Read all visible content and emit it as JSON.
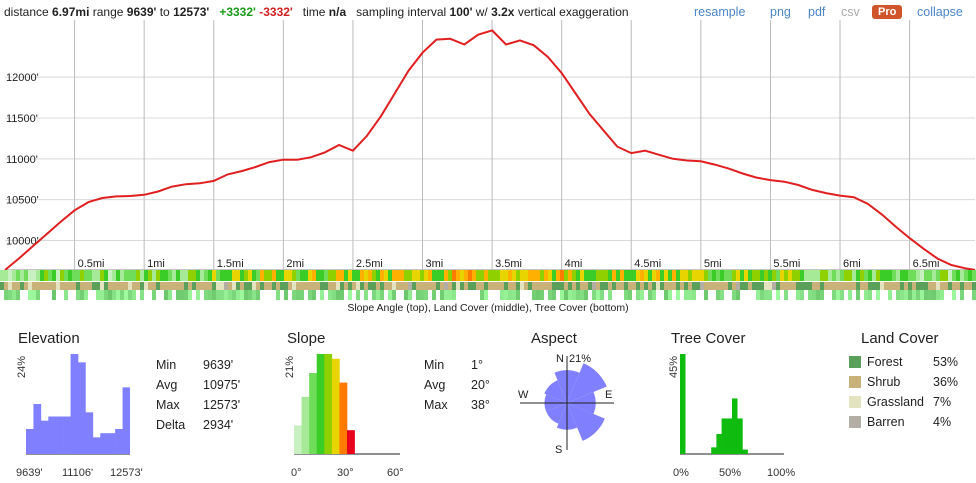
{
  "topbar": {
    "distance_label": "distance",
    "distance_value": "6.97mi",
    "range_label": "range",
    "range_min": "9639'",
    "range_to": "to",
    "range_max": "12573'",
    "gain": "+3332'",
    "loss": "-3332'",
    "time_label": "time",
    "time_value": "n/a",
    "sampling_label": "sampling interval",
    "sampling_value": "100'",
    "w_label": "w/",
    "exaggeration_value": "3.2x",
    "exaggeration_label": "vertical exaggeration",
    "resample": "resample",
    "png": "png",
    "pdf": "pdf",
    "csv": "csv",
    "pro": "Pro",
    "collapse": "collapse"
  },
  "strip_caption": "Slope Angle (top), Land Cover (middle), Tree Cover (bottom)",
  "chart_data": [
    {
      "type": "line",
      "title": "",
      "xlabel": "",
      "ylabel": "",
      "xlim": [
        0,
        6.97
      ],
      "ylim": [
        9639,
        12700
      ],
      "y_ticks": [
        10000,
        10500,
        11000,
        11500,
        12000
      ],
      "y_tick_labels": [
        "10000'",
        "10500'",
        "11000'",
        "11500'",
        "12000'"
      ],
      "x_ticks": [
        0.5,
        1,
        1.5,
        2,
        2.5,
        3,
        3.5,
        4,
        4.5,
        5,
        5.5,
        6,
        6.5
      ],
      "x_tick_labels": [
        "0.5mi",
        "1mi",
        "1.5mi",
        "2mi",
        "2.5mi",
        "3mi",
        "3.5mi",
        "4mi",
        "4.5mi",
        "5mi",
        "5.5mi",
        "6mi",
        "6.5mi"
      ],
      "grid": true,
      "color": "#e02020",
      "x": [
        0,
        0.1,
        0.2,
        0.3,
        0.4,
        0.5,
        0.6,
        0.7,
        0.8,
        0.9,
        1.0,
        1.1,
        1.2,
        1.3,
        1.4,
        1.5,
        1.6,
        1.7,
        1.8,
        1.9,
        2.0,
        2.1,
        2.2,
        2.3,
        2.4,
        2.5,
        2.6,
        2.7,
        2.8,
        2.9,
        3.0,
        3.1,
        3.2,
        3.3,
        3.4,
        3.5,
        3.6,
        3.7,
        3.8,
        3.9,
        4.0,
        4.1,
        4.2,
        4.3,
        4.4,
        4.5,
        4.6,
        4.7,
        4.8,
        4.9,
        5.0,
        5.1,
        5.2,
        5.3,
        5.4,
        5.5,
        5.6,
        5.7,
        5.8,
        5.9,
        6.0,
        6.1,
        6.2,
        6.3,
        6.4,
        6.5,
        6.6,
        6.7,
        6.8,
        6.9,
        6.97
      ],
      "y": [
        9639,
        9780,
        9930,
        10080,
        10230,
        10370,
        10470,
        10520,
        10540,
        10545,
        10560,
        10600,
        10660,
        10690,
        10700,
        10730,
        10810,
        10850,
        10900,
        10960,
        10990,
        10990,
        11020,
        11080,
        11170,
        11100,
        11280,
        11520,
        11800,
        12080,
        12300,
        12460,
        12470,
        12400,
        12520,
        12573,
        12400,
        12450,
        12390,
        12250,
        12050,
        11800,
        11550,
        11350,
        11150,
        11070,
        11100,
        11050,
        11000,
        10980,
        10970,
        10930,
        10880,
        10820,
        10770,
        10740,
        10720,
        10680,
        10620,
        10580,
        10550,
        10530,
        10450,
        10320,
        10170,
        10030,
        9900,
        9780,
        9700,
        9660,
        9640
      ]
    },
    {
      "type": "bar",
      "title": "Elevation",
      "ylabel": "24%",
      "x_tick_labels": [
        "9639'",
        "11106'",
        "12573'"
      ],
      "values": [
        6,
        12,
        8,
        9,
        9,
        9,
        24,
        22,
        10,
        4,
        5,
        5,
        6,
        16
      ],
      "color": "#8080ff"
    },
    {
      "type": "bar",
      "title": "Slope",
      "ylabel": "21%",
      "x_tick_labels": [
        "0°",
        "30°",
        "60°"
      ],
      "values": [
        6,
        12,
        17,
        21,
        21,
        20,
        15,
        5
      ],
      "colors": [
        "#c8f0c0",
        "#a6ea98",
        "#6fdd5a",
        "#3acd28",
        "#8fd000",
        "#e8d400",
        "#ff7a00",
        "#e8001c"
      ]
    },
    {
      "type": "pie",
      "title": "Aspect",
      "max_label": "21%",
      "direction_labels": [
        "N",
        "E",
        "S",
        "W"
      ],
      "categories": [
        "N",
        "NE",
        "E",
        "SE",
        "S",
        "SW",
        "W",
        "NW"
      ],
      "values": [
        16,
        21,
        14,
        20,
        13,
        11,
        11,
        12
      ],
      "color": "#8080ff"
    },
    {
      "type": "bar",
      "title": "Tree Cover",
      "ylabel": "45%",
      "x_tick_labels": [
        "0%",
        "50%",
        "100%"
      ],
      "values": [
        45,
        0,
        0,
        0,
        0,
        0,
        3,
        9,
        16,
        16,
        25,
        16,
        2,
        0,
        0,
        0,
        0,
        0,
        0,
        0
      ],
      "color": "#10bb10"
    }
  ],
  "elevation_stats": {
    "min_label": "Min",
    "min": "9639'",
    "avg_label": "Avg",
    "avg": "10975'",
    "max_label": "Max",
    "max": "12573'",
    "delta_label": "Delta",
    "delta": "2934'"
  },
  "slope_stats": {
    "min_label": "Min",
    "min": "1°",
    "avg_label": "Avg",
    "avg": "20°",
    "max_label": "Max",
    "max": "38°"
  },
  "land_cover": {
    "title": "Land Cover",
    "items": [
      {
        "name": "Forest",
        "percent": "53%",
        "color": "#5aa05a"
      },
      {
        "name": "Shrub",
        "percent": "36%",
        "color": "#c9b27a"
      },
      {
        "name": "Grassland",
        "percent": "7%",
        "color": "#e3e3c0"
      },
      {
        "name": "Barren",
        "percent": "4%",
        "color": "#b3aea5"
      }
    ]
  },
  "colors": {
    "link": "#4a86c8",
    "gain": "#1a9a1a",
    "loss": "#d42020",
    "pro_badge": "#d0552d"
  }
}
